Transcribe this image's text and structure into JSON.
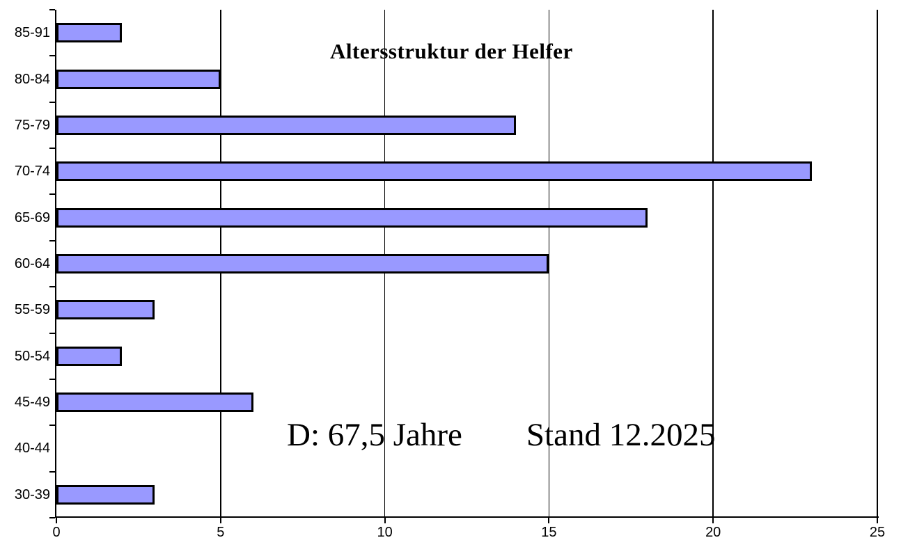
{
  "chart_data": {
    "type": "bar",
    "orientation": "horizontal",
    "title": "Altersstruktur der Helfer",
    "categories": [
      "85-91",
      "80-84",
      "75-79",
      "70-74",
      "65-69",
      "60-64",
      "55-59",
      "50-54",
      "45-49",
      "40-44",
      "30-39"
    ],
    "values": [
      2,
      5,
      14,
      23,
      18,
      15,
      3,
      2,
      6,
      0,
      3
    ],
    "xlim": [
      0,
      25
    ],
    "x_ticks": [
      0,
      5,
      10,
      15,
      20,
      25
    ],
    "grid": "vertical gridlines at x ticks",
    "legend_position": "none",
    "bar_color": "#9999FF",
    "bar_border_color": "#000000",
    "axis_color": "#000000",
    "background_color": "#FFFFFF",
    "annotations": [
      {
        "text": "D: 67,5 Jahre"
      },
      {
        "text": "Stand 12.2025"
      }
    ]
  }
}
